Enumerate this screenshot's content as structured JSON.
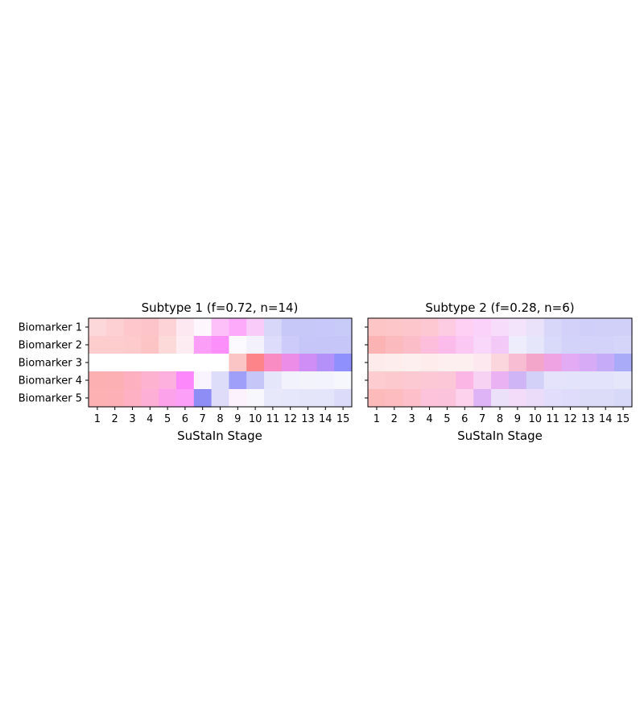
{
  "chart_data": [
    {
      "type": "heatmap",
      "title": "Subtype 1 (f=0.72, n=14)",
      "xlabel": "SuStaIn Stage",
      "ylabel": "",
      "x": [
        "1",
        "2",
        "3",
        "4",
        "5",
        "6",
        "7",
        "8",
        "9",
        "10",
        "11",
        "12",
        "13",
        "14",
        "15"
      ],
      "y": [
        "Biomarker 1",
        "Biomarker 2",
        "Biomarker 3",
        "Biomarker 4",
        "Biomarker 5"
      ],
      "colors": [
        [
          "#fdd8db",
          "#fdd0d3",
          "#fdc7cb",
          "#fdc5ca",
          "#fdd3d8",
          "#fde7f1",
          "#fdf6fc",
          "#fdc0f8",
          "#fdaafa",
          "#f8cbf9",
          "#d8d7f9",
          "#c8c8f8",
          "#c8c8f8",
          "#c8c8fa",
          "#c8caf8"
        ],
        [
          "#fdcccc",
          "#fdcccc",
          "#fdcbcc",
          "#fdc4c6",
          "#fddada",
          "#fdecf2",
          "#fb9ef7",
          "#fd8ffb",
          "#fcf9ff",
          "#f2f1fc",
          "#dddcfa",
          "#cccbf9",
          "#c6c6f8",
          "#c6c6f8",
          "#c6c6f8"
        ],
        [
          "#ffffff",
          "#ffffff",
          "#ffffff",
          "#ffffff",
          "#ffffff",
          "#ffffff",
          "#ffffff",
          "#ffffff",
          "#fcc5c5",
          "#fd8589",
          "#fa8cc4",
          "#ec8ee8",
          "#cf8ef6",
          "#b391f8",
          "#8f8ffd"
        ],
        [
          "#fdb0b1",
          "#fdb0b4",
          "#fdb0bf",
          "#fdb2d0",
          "#fdafdd",
          "#fd88fb",
          "#f9f4fe",
          "#dddcf9",
          "#9f9ff9",
          "#c6c6f9",
          "#e6e6fa",
          "#f2f2fc",
          "#f3f3fc",
          "#f3f3fd",
          "#f6f6fd"
        ],
        [
          "#fdb1b2",
          "#fdb1b6",
          "#fdb1c2",
          "#fdafd6",
          "#fca2ea",
          "#fc9ff9",
          "#8e8cf5",
          "#dedcf9",
          "#fbf2fd",
          "#f8f7fe",
          "#e8e8fb",
          "#e7e7fb",
          "#e5e5fa",
          "#e4e4fa",
          "#dcdcfa"
        ]
      ]
    },
    {
      "type": "heatmap",
      "title": "Subtype 2 (f=0.28, n=6)",
      "xlabel": "SuStaIn Stage",
      "ylabel": "",
      "x": [
        "1",
        "2",
        "3",
        "4",
        "5",
        "6",
        "7",
        "8",
        "9",
        "10",
        "11",
        "12",
        "13",
        "14",
        "15"
      ],
      "y": [
        "Biomarker 1",
        "Biomarker 2",
        "Biomarker 3",
        "Biomarker 4",
        "Biomarker 5"
      ],
      "colors": [
        [
          "#fdc5c6",
          "#fdc6c9",
          "#fdc6cd",
          "#fdc8d2",
          "#fdcbe2",
          "#fdd0f4",
          "#fbd3fa",
          "#f8dcfb",
          "#f3e3fb",
          "#eae2fa",
          "#d8d7f9",
          "#d3d1f9",
          "#cfcff9",
          "#d0d0f8",
          "#d0d0f8"
        ],
        [
          "#fbb3b4",
          "#fbbabe",
          "#fbbec8",
          "#fcbedb",
          "#fcbceb",
          "#fbc8f4",
          "#f8d7fa",
          "#f3c9f8",
          "#eeedfc",
          "#e6e6fb",
          "#d9d9fa",
          "#d3d3f9",
          "#d3d3f9",
          "#d3d3f9",
          "#d5d5f9"
        ],
        [
          "#fdeaea",
          "#fdeeed",
          "#fdefef",
          "#fdeceb",
          "#fdefef",
          "#fdeeef",
          "#fde8ef",
          "#fbd6dd",
          "#f8bdd2",
          "#f3a6c9",
          "#efa3e3",
          "#e4abf5",
          "#d8abf7",
          "#c5abf8",
          "#a9abf8"
        ],
        [
          "#fcccd1",
          "#fcc9ce",
          "#fcc8d1",
          "#fcc8d6",
          "#fcc8d8",
          "#fcb6e5",
          "#f8d2f3",
          "#eab2f2",
          "#cfb4f6",
          "#d3d1f8",
          "#e5e3fb",
          "#e3e3fb",
          "#e3e3fb",
          "#e3e3fb",
          "#e6e6fb"
        ],
        [
          "#fdbabb",
          "#fdbcc0",
          "#fdc0cb",
          "#fcc3da",
          "#fcc3dd",
          "#fcd2ec",
          "#deb4f6",
          "#ebe1f8",
          "#f2dcfa",
          "#ebddfa",
          "#e2ddfa",
          "#dfdbfa",
          "#dcdcf9",
          "#dcdcf9",
          "#d8d8f9"
        ]
      ]
    }
  ]
}
